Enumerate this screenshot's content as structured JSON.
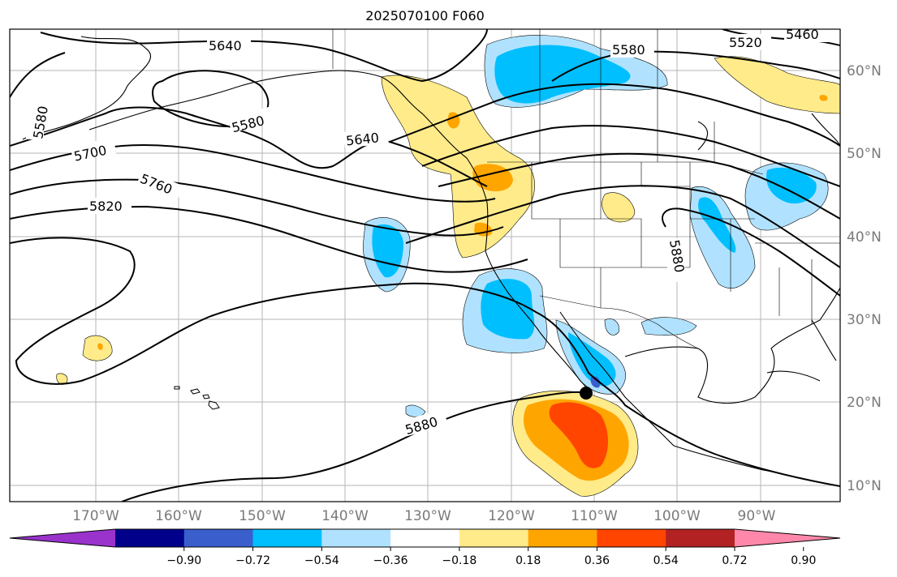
{
  "title": "2025070100 F060",
  "map": {
    "lat_labels": [
      "60°N",
      "50°N",
      "40°N",
      "30°N",
      "20°N",
      "10°N"
    ],
    "lon_labels": [
      "170°W",
      "160°W",
      "150°W",
      "140°W",
      "130°W",
      "120°W",
      "110°W",
      "100°W",
      "90°W"
    ],
    "contour_labels": [
      "5640",
      "5580",
      "5580",
      "5700",
      "5760",
      "5820",
      "5640",
      "5580",
      "5520",
      "5460",
      "5880",
      "5880"
    ]
  },
  "colorbar": {
    "tick_labels": [
      "−0.90",
      "−0.72",
      "−0.54",
      "−0.36",
      "−0.18",
      "0.18",
      "0.36",
      "0.54",
      "0.72",
      "0.90"
    ],
    "colors": [
      "#9933cc",
      "#00008b",
      "#3a5fcd",
      "#00bfff",
      "#b0e2ff",
      "#ffffff",
      "#ffeb8a",
      "#ffa500",
      "#ff4500",
      "#b22222",
      "#ff88aa"
    ]
  }
}
